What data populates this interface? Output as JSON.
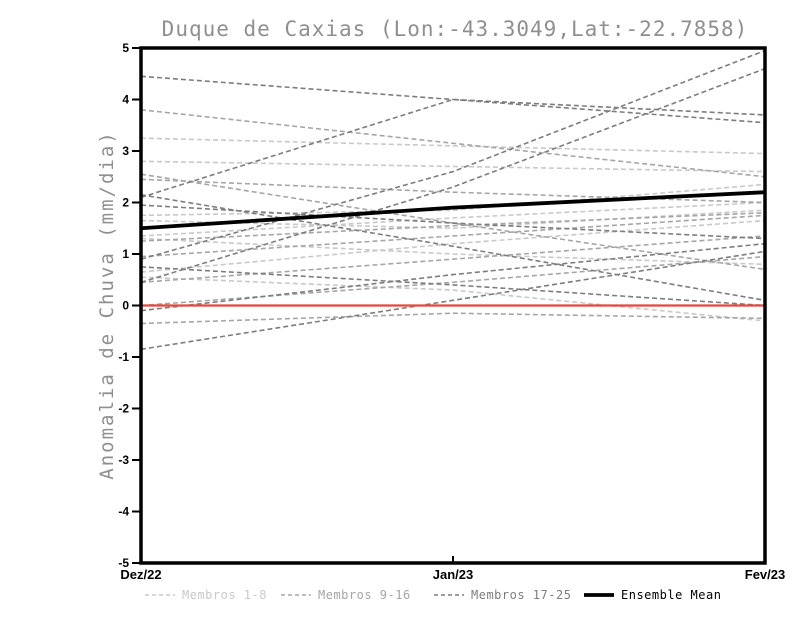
{
  "header": {
    "title": "Duque de Caxias (Lon:-43.3049,Lat:-22.7858)"
  },
  "axes": {
    "y_label": "Anomalia de Chuva (mm/dia)",
    "y_ticks": [
      "5",
      "4",
      "3",
      "2",
      "1",
      "0",
      "-1",
      "-2",
      "-3",
      "-4",
      "-5"
    ],
    "x_ticks": [
      "Dez/22",
      "Jan/23",
      "Fev/23"
    ]
  },
  "legend": {
    "items": [
      {
        "label": "Membros 1-8",
        "color": "#c9c9c9",
        "line_style": "dashed"
      },
      {
        "label": "Membros 9-16",
        "color": "#a6a6a6",
        "line_style": "dashed"
      },
      {
        "label": "Membros 17-25",
        "color": "#7d7d7d",
        "line_style": "dashed"
      },
      {
        "label": "Ensemble Mean",
        "color": "#000000",
        "line_style": "solid"
      }
    ]
  },
  "chart_data": {
    "type": "line",
    "title": "Duque de Caxias (Lon:-43.3049,Lat:-22.7858)",
    "xlabel": "",
    "ylabel": "Anomalia de Chuva (mm/dia)",
    "x": [
      "Dez/22",
      "Jan/23",
      "Fev/23"
    ],
    "ylim": [
      -5,
      5
    ],
    "ytick_values": [
      5,
      4,
      3,
      2,
      1,
      0,
      -1,
      -2,
      -3,
      -4,
      -5
    ],
    "grid": false,
    "legend_position": "bottom",
    "frame_color": "#000000",
    "zero_line": {
      "name": "zero-reference",
      "color": "#e8463c",
      "values": [
        0,
        0,
        0
      ]
    },
    "ensemble_mean": {
      "name": "Ensemble Mean",
      "color": "#000000",
      "values": [
        1.5,
        1.9,
        2.2
      ]
    },
    "member_groups": [
      {
        "name": "Membros 1-8",
        "color": "#c9c9c9",
        "members": [
          [
            3.25,
            3.1,
            2.95
          ],
          [
            2.8,
            2.7,
            2.6
          ],
          [
            1.75,
            1.85,
            2.35
          ],
          [
            1.65,
            1.5,
            1.85
          ],
          [
            1.35,
            1.7,
            2.0
          ],
          [
            1.3,
            1.0,
            0.8
          ],
          [
            0.65,
            1.2,
            1.65
          ],
          [
            0.55,
            0.3,
            -0.3
          ]
        ]
      },
      {
        "name": "Membros 9-16",
        "color": "#a6a6a6",
        "members": [
          [
            3.8,
            3.15,
            2.5
          ],
          [
            2.45,
            2.2,
            2.0
          ],
          [
            1.25,
            1.55,
            1.8
          ],
          [
            0.95,
            1.35,
            1.75
          ],
          [
            0.45,
            0.9,
            1.35
          ],
          [
            0.0,
            0.45,
            0.95
          ],
          [
            -0.35,
            -0.15,
            -0.25
          ],
          [
            2.55,
            1.6,
            0.7
          ]
        ]
      },
      {
        "name": "Membros 17-25",
        "color": "#7d7d7d",
        "members": [
          [
            4.45,
            4.0,
            3.55
          ],
          [
            2.1,
            4.0,
            3.7
          ],
          [
            0.9,
            2.6,
            4.95
          ],
          [
            0.45,
            2.3,
            4.6
          ],
          [
            1.95,
            1.6,
            1.3
          ],
          [
            2.15,
            1.15,
            0.1
          ],
          [
            -0.85,
            0.1,
            1.05
          ],
          [
            -0.1,
            0.6,
            1.2
          ],
          [
            0.75,
            0.4,
            0.0
          ]
        ]
      }
    ]
  }
}
